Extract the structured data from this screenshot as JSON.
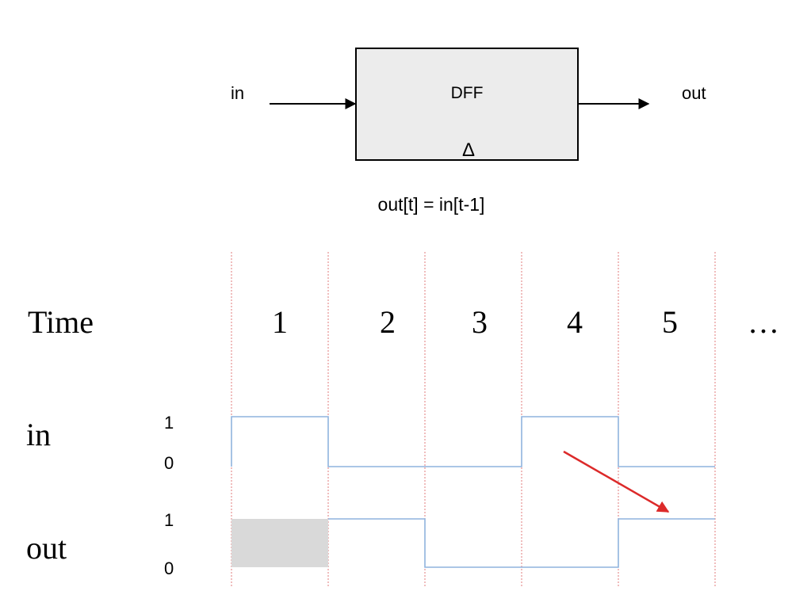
{
  "dff": {
    "title": "DFF",
    "input_label": "in",
    "output_label": "out",
    "clock_symbol": "Δ",
    "equation": "out[t] = in[t-1]"
  },
  "timing": {
    "time_label": "Time",
    "time_steps": [
      "1",
      "2",
      "3",
      "4",
      "5"
    ],
    "ellipsis": "…",
    "signals": [
      {
        "name": "in",
        "high_label": "1",
        "low_label": "0",
        "values": [
          1,
          0,
          0,
          1,
          0
        ]
      },
      {
        "name": "out",
        "high_label": "1",
        "low_label": "0",
        "values": [
          null,
          1,
          0,
          0,
          1
        ]
      }
    ]
  },
  "colors": {
    "box_fill": "#ececec",
    "waveform": "#8fb4de",
    "grid_line": "#e07b7b",
    "arrow": "#dc2a2a",
    "unknown_fill": "#d9d9d9"
  }
}
